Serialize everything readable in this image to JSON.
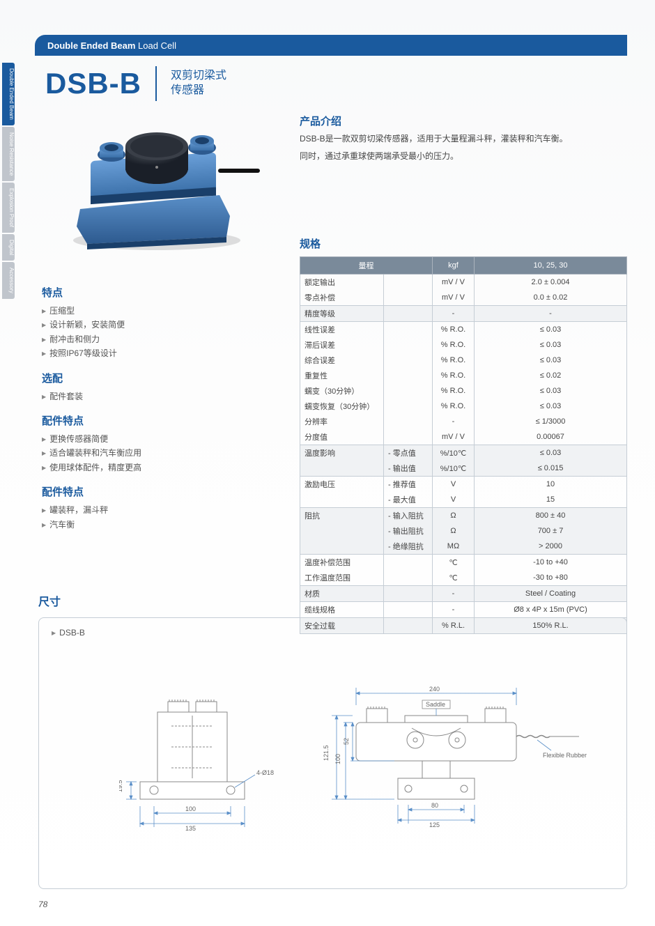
{
  "header": {
    "bold": "Double Ended Beam",
    "light": " Load Cell"
  },
  "sideTabs": [
    {
      "label": "Double Ended Beam",
      "active": true
    },
    {
      "label": "Noise Resistance",
      "active": false
    },
    {
      "label": "Explosion Proof",
      "active": false
    },
    {
      "label": "Digital",
      "active": false
    },
    {
      "label": "Accessory",
      "active": false
    }
  ],
  "model": "DSB-B",
  "subtitle1": "双剪切梁式",
  "subtitle2": "传感器",
  "intro": {
    "title": "产品介绍",
    "p1": "DSB-B是一款双剪切梁传感器，适用于大量程漏斗秤，灌装秤和汽车衡。",
    "p2": "同时，通过承重球使两端承受最小的压力。"
  },
  "features": {
    "title": "特点",
    "items": [
      "压缩型",
      "设计新颖，安装简便",
      "耐冲击和侧力",
      "按照IP67等级设计"
    ]
  },
  "options": {
    "title": "选配",
    "items": [
      "配件套装"
    ]
  },
  "accFeatures": {
    "title": "配件特点",
    "items": [
      "更换传感器简便",
      "适合罐装秤和汽车衡应用",
      "使用球体配件，精度更高"
    ]
  },
  "accFeatures2": {
    "title": "配件特点",
    "items": [
      "罐装秤，漏斗秤",
      "汽车衡"
    ]
  },
  "specTitle": "规格",
  "specHeader": {
    "c1": "量程",
    "c2": "kgf",
    "c3": "10, 25, 30"
  },
  "specRows": [
    {
      "c1": "额定输出",
      "c2": "",
      "c3": "mV / V",
      "c4": "2.0 ± 0.004",
      "sep": false,
      "alt": false
    },
    {
      "c1": "零点补偿",
      "c2": "",
      "c3": "mV / V",
      "c4": "0.0 ± 0.02",
      "sep": true,
      "alt": false
    },
    {
      "c1": "精度等级",
      "c2": "",
      "c3": "-",
      "c4": "-",
      "sep": true,
      "alt": true
    },
    {
      "c1": "线性误差",
      "c2": "",
      "c3": "% R.O.",
      "c4": "≤ 0.03",
      "sep": false,
      "alt": false
    },
    {
      "c1": "滞后误差",
      "c2": "",
      "c3": "% R.O.",
      "c4": "≤ 0.03",
      "sep": false,
      "alt": false
    },
    {
      "c1": "综合误差",
      "c2": "",
      "c3": "% R.O.",
      "c4": "≤ 0.03",
      "sep": false,
      "alt": false
    },
    {
      "c1": "重复性",
      "c2": "",
      "c3": "% R.O.",
      "c4": "≤ 0.02",
      "sep": false,
      "alt": false
    },
    {
      "c1": "蠕变（30分钟）",
      "c2": "",
      "c3": "% R.O.",
      "c4": "≤ 0.03",
      "sep": false,
      "alt": false
    },
    {
      "c1": "蠕变恢复（30分钟）",
      "c2": "",
      "c3": "% R.O.",
      "c4": "≤ 0.03",
      "sep": false,
      "alt": false
    },
    {
      "c1": "分辨率",
      "c2": "",
      "c3": "-",
      "c4": "≤ 1/3000",
      "sep": false,
      "alt": false
    },
    {
      "c1": "分度值",
      "c2": "",
      "c3": "mV / V",
      "c4": "0.00067",
      "sep": true,
      "alt": false
    },
    {
      "c1": "温度影响",
      "c2": "- 零点值",
      "c3": "%/10℃",
      "c4": "≤ 0.03",
      "sep": false,
      "alt": true
    },
    {
      "c1": "",
      "c2": "- 输出值",
      "c3": "%/10℃",
      "c4": "≤ 0.015",
      "sep": true,
      "alt": true
    },
    {
      "c1": "激励电压",
      "c2": "- 推荐值",
      "c3": "V",
      "c4": "10",
      "sep": false,
      "alt": false
    },
    {
      "c1": "",
      "c2": "- 最大值",
      "c3": "V",
      "c4": "15",
      "sep": true,
      "alt": false
    },
    {
      "c1": "阻抗",
      "c2": "- 输入阻抗",
      "c3": "Ω",
      "c4": "800 ± 40",
      "sep": false,
      "alt": true
    },
    {
      "c1": "",
      "c2": "- 输出阻抗",
      "c3": "Ω",
      "c4": "700 ± 7",
      "sep": false,
      "alt": true
    },
    {
      "c1": "",
      "c2": "- 绝缘阻抗",
      "c3": "MΩ",
      "c4": "> 2000",
      "sep": true,
      "alt": true
    },
    {
      "c1": "温度补偿范围",
      "c2": "",
      "c3": "℃",
      "c4": "-10 to +40",
      "sep": false,
      "alt": false
    },
    {
      "c1": "工作温度范围",
      "c2": "",
      "c3": "℃",
      "c4": "-30 to +80",
      "sep": true,
      "alt": false
    },
    {
      "c1": "材质",
      "c2": "",
      "c3": "-",
      "c4": "Steel / Coating",
      "sep": true,
      "alt": true
    },
    {
      "c1": "缆线规格",
      "c2": "",
      "c3": "-",
      "c4": "Ø8 x 4P x 15m (PVC)",
      "sep": true,
      "alt": false
    },
    {
      "c1": "安全过载",
      "c2": "",
      "c3": "% R.L.",
      "c4": "150% R.L.",
      "sep": true,
      "alt": true
    }
  ],
  "dimTitle": "尺寸",
  "dimLabel": "DSB-B",
  "dims": {
    "front": {
      "w": "100",
      "wOuter": "135",
      "h": "19.5",
      "holes": "4-Ø18"
    },
    "side": {
      "w": "240",
      "base": "80",
      "baseOuter": "125",
      "h1": "121.5",
      "h2": "100",
      "h3": "52",
      "saddle": "Saddle",
      "rubber": "Flexible Rubber"
    }
  },
  "pageNum": "78",
  "colors": {
    "primary": "#1a5a9e",
    "tabInactive": "#c0c5cc",
    "tableHeader": "#7a8a9a",
    "border": "#c5cdd5",
    "altRow": "#f0f2f4",
    "productBlue": "#3a6fa8",
    "productDark": "#2a2f38"
  }
}
